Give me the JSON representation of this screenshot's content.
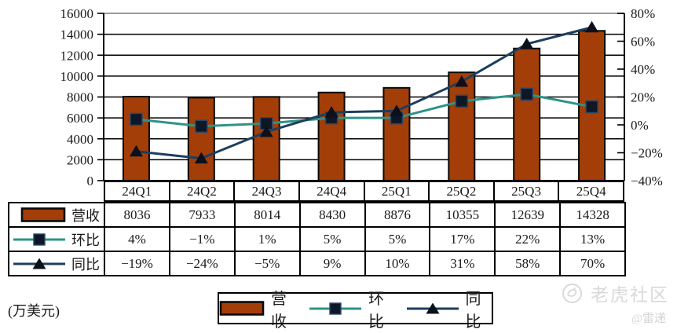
{
  "chart_data": {
    "type": "bar",
    "subtype": "combo-bar-line",
    "categories": [
      "24Q1",
      "24Q2",
      "24Q3",
      "24Q4",
      "25Q1",
      "25Q2",
      "25Q3",
      "25Q4"
    ],
    "series": [
      {
        "name": "营收",
        "type": "bar",
        "axis": "left",
        "color": "#A33E08",
        "values": [
          8036,
          7933,
          8014,
          8430,
          8876,
          10355,
          12639,
          14328
        ]
      },
      {
        "name": "环比",
        "type": "line",
        "marker": "square",
        "axis": "right",
        "color": "#2F9388",
        "values": [
          4,
          -1,
          1,
          5,
          5,
          17,
          22,
          13
        ]
      },
      {
        "name": "同比",
        "type": "line",
        "marker": "triangle",
        "axis": "right",
        "color": "#1D3E5E",
        "values": [
          -19,
          -24,
          -5,
          9,
          10,
          31,
          58,
          70
        ]
      }
    ],
    "left_axis": {
      "min": 0,
      "max": 16000,
      "step": 2000,
      "labels": [
        "16000",
        "14000",
        "12000",
        "10000",
        "8000",
        "6000",
        "4000",
        "2000",
        "0"
      ]
    },
    "right_axis": {
      "min": -40,
      "max": 80,
      "step": 20,
      "labels": [
        "80%",
        "60%",
        "40%",
        "20%",
        "0%",
        "−20%",
        "−40%"
      ]
    },
    "grid": true,
    "legend_position": "bottom"
  },
  "table": {
    "row_headers": [
      "营收",
      "环比",
      "同比"
    ],
    "columns": [
      "24Q1",
      "24Q2",
      "24Q3",
      "24Q4",
      "25Q1",
      "25Q2",
      "25Q3",
      "25Q4"
    ],
    "rows": [
      [
        "8036",
        "7933",
        "8014",
        "8430",
        "8876",
        "10355",
        "12639",
        "14328"
      ],
      [
        "4%",
        "−1%",
        "1%",
        "5%",
        "5%",
        "17%",
        "22%",
        "13%"
      ],
      [
        "−19%",
        "−24%",
        "−5%",
        "9%",
        "10%",
        "31%",
        "58%",
        "70%"
      ]
    ]
  },
  "legend": {
    "items": [
      {
        "label": "营收"
      },
      {
        "label": "环比"
      },
      {
        "label": "同比"
      }
    ]
  },
  "footnote": "(万美元)",
  "watermark": {
    "community": "老虎社区",
    "author": "@雷递"
  },
  "colors": {
    "bar": "#A33E08",
    "qoq_line": "#2F9388",
    "yoy_line": "#1D3E5E",
    "marker": "#0D1726",
    "grid": "#000000",
    "top_grid": "#999999",
    "watermark": "#d9d9d9"
  }
}
